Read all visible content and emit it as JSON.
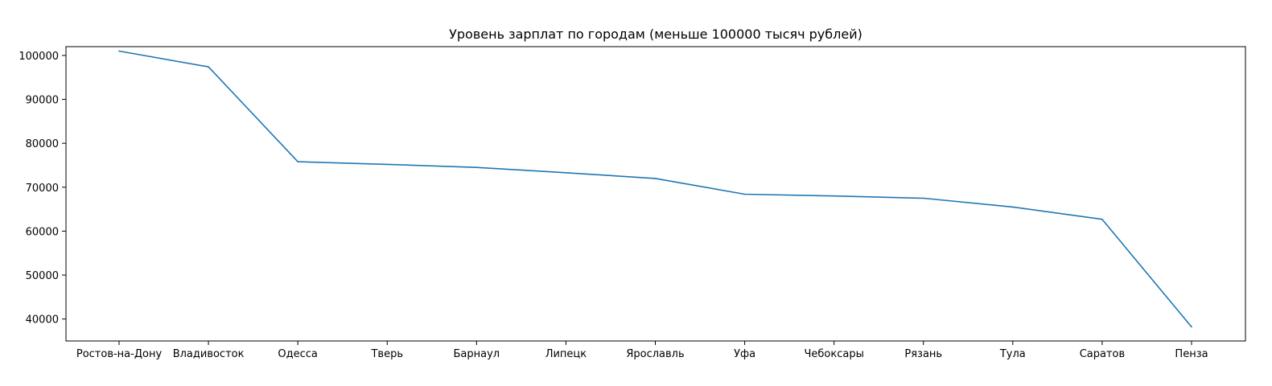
{
  "chart_data": {
    "type": "line",
    "title": "Уровень зарплат по городам (меньше 100000 тысяч рублей)",
    "xlabel": "",
    "ylabel": "",
    "categories": [
      "Ростов-на-Дону",
      "Владивосток",
      "Одесса",
      "Тверь",
      "Барнаул",
      "Липецк",
      "Ярославль",
      "Уфа",
      "Чебоксары",
      "Рязань",
      "Тула",
      "Саратов",
      "Пенза"
    ],
    "series": [
      {
        "values": [
          101000,
          97400,
          75800,
          75200,
          74500,
          73300,
          72000,
          68400,
          68000,
          67500,
          65500,
          62700,
          38200
        ]
      }
    ],
    "ylim": [
      35000,
      102000
    ],
    "yticks": [
      40000,
      50000,
      60000,
      70000,
      80000,
      90000,
      100000
    ],
    "grid": false,
    "line_color": "#1f77b4"
  }
}
